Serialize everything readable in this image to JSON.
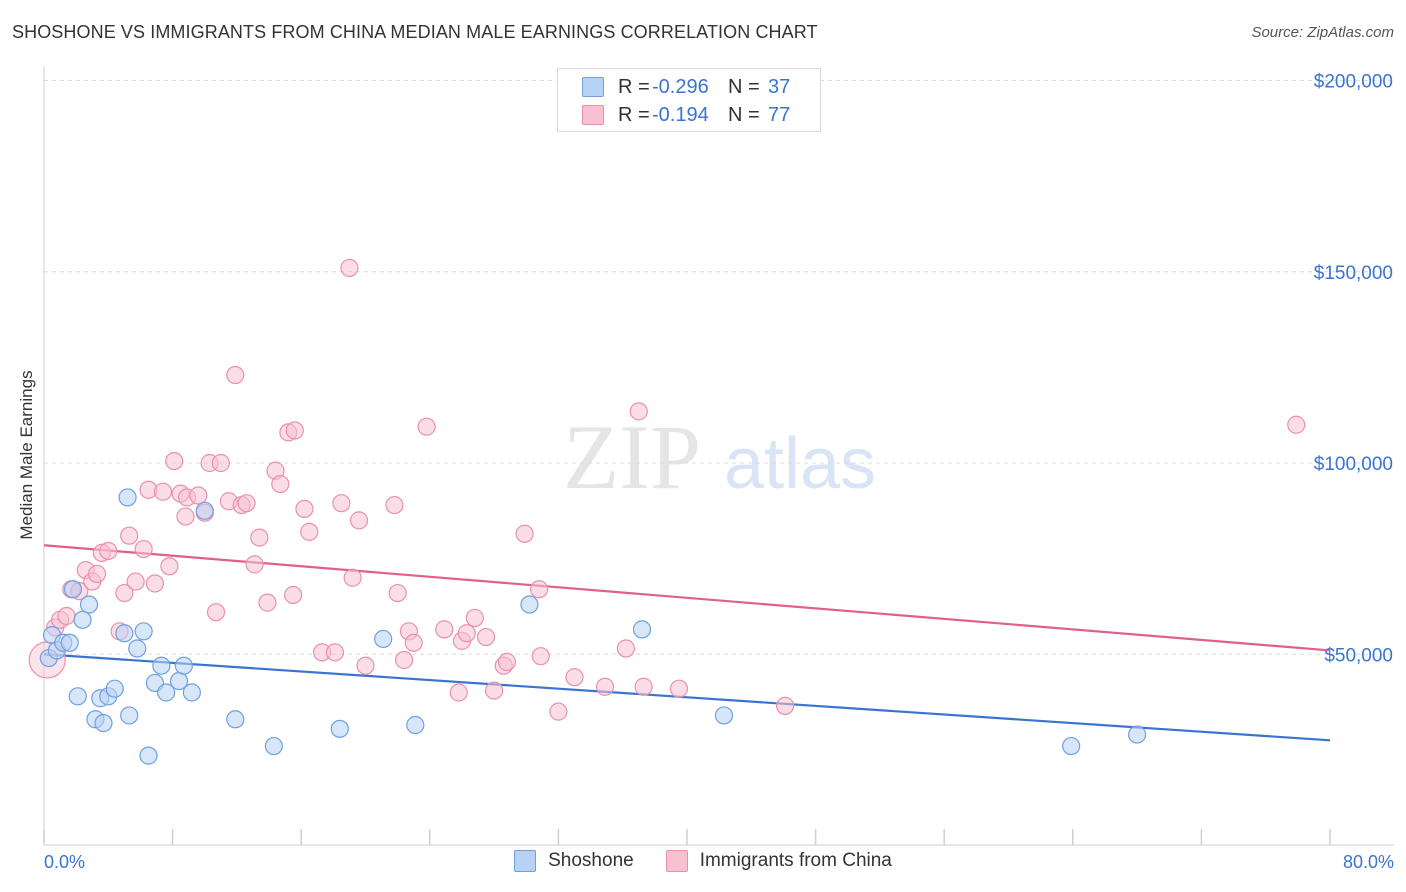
{
  "title": "SHOSHONE VS IMMIGRANTS FROM CHINA MEDIAN MALE EARNINGS CORRELATION CHART",
  "source": "Source: ZipAtlas.com",
  "watermark": {
    "zip": "ZIP",
    "atlas": "atlas"
  },
  "colors": {
    "blue": "#3a74d0",
    "pink": "#e0608a",
    "blue_fill": "#b8d2f5",
    "pink_fill": "#f7c1d2",
    "grid": "#dcdcdc"
  },
  "legend": {
    "r_label": "R =",
    "n_label": "N =",
    "rows": [
      {
        "r": "-0.296",
        "n": "37"
      },
      {
        "r": "-0.194",
        "n": "77"
      }
    ]
  },
  "chart_data": {
    "type": "scatter",
    "xlabel": "",
    "ylabel": "Median Male Earnings",
    "xlim": [
      0,
      80
    ],
    "ylim": [
      0,
      210000
    ],
    "x_tick_labels": [
      "0.0%",
      "80.0%"
    ],
    "y_ticks": [
      50000,
      100000,
      150000,
      200000
    ],
    "y_tick_labels": [
      "$50,000",
      "$100,000",
      "$150,000",
      "$200,000"
    ],
    "grid": true,
    "legend_position": "top-center",
    "series": [
      {
        "name": "Shoshone",
        "color": "#3a74d0",
        "trend": [
          [
            0,
            50000
          ],
          [
            80,
            27500
          ]
        ],
        "points": [
          [
            0.3,
            49000
          ],
          [
            0.5,
            55000
          ],
          [
            0.8,
            51000
          ],
          [
            1.2,
            53000
          ],
          [
            1.6,
            53000
          ],
          [
            1.8,
            67000
          ],
          [
            2.1,
            39000
          ],
          [
            2.4,
            59000
          ],
          [
            2.8,
            63000
          ],
          [
            3.2,
            33000
          ],
          [
            3.5,
            38500
          ],
          [
            3.7,
            32000
          ],
          [
            4.0,
            39000
          ],
          [
            4.4,
            41000
          ],
          [
            5.0,
            55500
          ],
          [
            5.2,
            91000
          ],
          [
            5.3,
            34000
          ],
          [
            5.8,
            51500
          ],
          [
            6.2,
            56000
          ],
          [
            6.5,
            23500
          ],
          [
            6.9,
            42500
          ],
          [
            7.3,
            47000
          ],
          [
            7.6,
            40000
          ],
          [
            8.4,
            43000
          ],
          [
            8.7,
            47000
          ],
          [
            9.2,
            40000
          ],
          [
            10.0,
            87500
          ],
          [
            11.9,
            33000
          ],
          [
            14.3,
            26000
          ],
          [
            18.4,
            30500
          ],
          [
            21.1,
            54000
          ],
          [
            23.1,
            31500
          ],
          [
            30.2,
            63000
          ],
          [
            37.2,
            56500
          ],
          [
            42.3,
            34000
          ],
          [
            63.9,
            26000
          ],
          [
            68.0,
            29000
          ]
        ]
      },
      {
        "name": "Immigrants from China",
        "color": "#e0608a",
        "trend": [
          [
            0,
            78500
          ],
          [
            80,
            51000
          ]
        ],
        "points": [
          [
            0.2,
            48500
          ],
          [
            0.7,
            57000
          ],
          [
            1.0,
            59000
          ],
          [
            1.4,
            60000
          ],
          [
            1.7,
            67000
          ],
          [
            2.2,
            66500
          ],
          [
            2.6,
            72000
          ],
          [
            3.0,
            69000
          ],
          [
            3.3,
            71000
          ],
          [
            3.6,
            76500
          ],
          [
            4.0,
            77000
          ],
          [
            4.7,
            56000
          ],
          [
            5.0,
            66000
          ],
          [
            5.3,
            81000
          ],
          [
            5.7,
            69000
          ],
          [
            6.2,
            77500
          ],
          [
            6.5,
            93000
          ],
          [
            6.9,
            68500
          ],
          [
            7.4,
            92500
          ],
          [
            7.8,
            73000
          ],
          [
            8.1,
            100500
          ],
          [
            8.5,
            92000
          ],
          [
            8.8,
            86000
          ],
          [
            8.9,
            91000
          ],
          [
            9.6,
            91500
          ],
          [
            10.0,
            87000
          ],
          [
            10.3,
            100000
          ],
          [
            10.7,
            61000
          ],
          [
            11.0,
            100000
          ],
          [
            11.5,
            90000
          ],
          [
            11.9,
            123000
          ],
          [
            12.3,
            89000
          ],
          [
            12.6,
            89500
          ],
          [
            13.1,
            73500
          ],
          [
            13.4,
            80500
          ],
          [
            13.9,
            63500
          ],
          [
            14.4,
            98000
          ],
          [
            14.7,
            94500
          ],
          [
            15.2,
            108000
          ],
          [
            15.5,
            65500
          ],
          [
            15.6,
            108500
          ],
          [
            16.2,
            88000
          ],
          [
            16.5,
            82000
          ],
          [
            17.3,
            50500
          ],
          [
            18.1,
            50500
          ],
          [
            18.5,
            89500
          ],
          [
            19.0,
            151000
          ],
          [
            19.2,
            70000
          ],
          [
            19.6,
            85000
          ],
          [
            20.0,
            47000
          ],
          [
            21.8,
            89000
          ],
          [
            22.0,
            66000
          ],
          [
            22.4,
            48500
          ],
          [
            22.7,
            56000
          ],
          [
            23.0,
            53000
          ],
          [
            23.8,
            109500
          ],
          [
            24.9,
            56500
          ],
          [
            25.8,
            40000
          ],
          [
            26.0,
            53500
          ],
          [
            26.3,
            55500
          ],
          [
            26.8,
            59500
          ],
          [
            27.5,
            54500
          ],
          [
            28.0,
            40500
          ],
          [
            28.6,
            47000
          ],
          [
            28.8,
            48000
          ],
          [
            29.9,
            81500
          ],
          [
            30.8,
            67000
          ],
          [
            30.9,
            49500
          ],
          [
            32.0,
            35000
          ],
          [
            33.0,
            44000
          ],
          [
            34.9,
            41500
          ],
          [
            36.2,
            51500
          ],
          [
            37.0,
            113500
          ],
          [
            37.3,
            41500
          ],
          [
            39.5,
            41000
          ],
          [
            46.1,
            36500
          ],
          [
            77.9,
            110000
          ]
        ]
      }
    ]
  }
}
